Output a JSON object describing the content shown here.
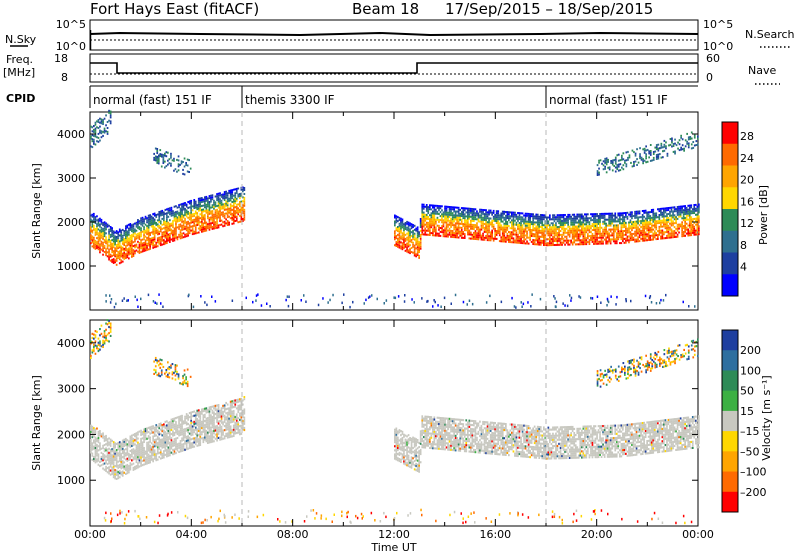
{
  "header": {
    "title": "Fort Hays East (fitACF)",
    "beam_label": "Beam 18",
    "date_range": "17/Sep/2015 – 18/Sep/2015"
  },
  "strips": {
    "nsky_label": "N.Sky",
    "nsearch_label": "N.Search",
    "nsky_ticks": [
      "10^5",
      "10^0"
    ],
    "nsearch_ticks": [
      "10^5",
      "10^0"
    ],
    "freq_label": "Freq.",
    "freq_unit": "[MHz]",
    "freq_ticks": [
      "18",
      "8"
    ],
    "nave_label": "Nave",
    "nave_ticks": [
      "60",
      "0"
    ],
    "cpid_label": "CPID",
    "cpid_segments": [
      {
        "label": "normal (fast) 151 IF",
        "start": 0,
        "end": 6
      },
      {
        "label": "themis 3300 IF",
        "start": 6,
        "end": 18
      },
      {
        "label": "normal (fast) 151 IF",
        "start": 18,
        "end": 24
      }
    ]
  },
  "chart_data": [
    {
      "type": "heatmap",
      "title": "",
      "xlabel": "Time UT",
      "ylabel": "Slant Range [km]",
      "xlim": [
        0,
        24
      ],
      "ylim": [
        0,
        4500
      ],
      "x_tick_labels": [
        "00:00",
        "04:00",
        "08:00",
        "12:00",
        "16:00",
        "20:00",
        "00:00"
      ],
      "y_tick_labels": [
        "1000",
        "2000",
        "3000",
        "4000"
      ],
      "colorbar": {
        "label": "Power [dB]",
        "tick_labels": [
          "28",
          "24",
          "20",
          "16",
          "12",
          "8",
          "4"
        ],
        "range": [
          0,
          30
        ],
        "colors": [
          "#ff0000",
          "#ff6a00",
          "#ffa500",
          "#ffd700",
          "#2e8b57",
          "#2f6f8f",
          "#1e3fa0",
          "#0000ff"
        ]
      },
      "echo_bands": [
        {
          "t": [
            0,
            1,
            2,
            4,
            6,
            6.1
          ],
          "center": [
            1850,
            1400,
            1700,
            2100,
            2400,
            2450
          ],
          "halfwidth": 400
        },
        {
          "t": [
            12,
            13,
            13.05,
            16,
            18,
            21,
            24
          ],
          "center": [
            1800,
            1500,
            2050,
            1900,
            1800,
            1850,
            2050
          ],
          "halfwidth": 350
        },
        {
          "t": [
            0,
            0.8
          ],
          "center": [
            3900,
            4300
          ],
          "halfwidth": 250
        },
        {
          "t": [
            2.5,
            4
          ],
          "center": [
            3500,
            3200
          ],
          "halfwidth": 200
        },
        {
          "t": [
            20,
            24
          ],
          "center": [
            3200,
            3900
          ],
          "halfwidth": 200
        }
      ]
    },
    {
      "type": "heatmap",
      "title": "",
      "xlabel": "Time UT",
      "ylabel": "Slant Range [km]",
      "xlim": [
        0,
        24
      ],
      "ylim": [
        0,
        4500
      ],
      "x_tick_labels": [
        "00:00",
        "04:00",
        "08:00",
        "12:00",
        "16:00",
        "20:00",
        "00:00"
      ],
      "y_tick_labels": [
        "1000",
        "2000",
        "3000",
        "4000"
      ],
      "colorbar": {
        "label": "Velocity [m s⁻¹]",
        "tick_labels": [
          "200",
          "100",
          "50",
          "15",
          "–15",
          "–50",
          "–100",
          "–200"
        ],
        "colors": [
          "#1f3f9f",
          "#2e6f9f",
          "#2e8b57",
          "#3cb043",
          "#c8c8c0",
          "#ffd700",
          "#ffa500",
          "#ff6a00",
          "#ff0000"
        ]
      }
    }
  ],
  "axes": {
    "time_label": "Time UT"
  }
}
